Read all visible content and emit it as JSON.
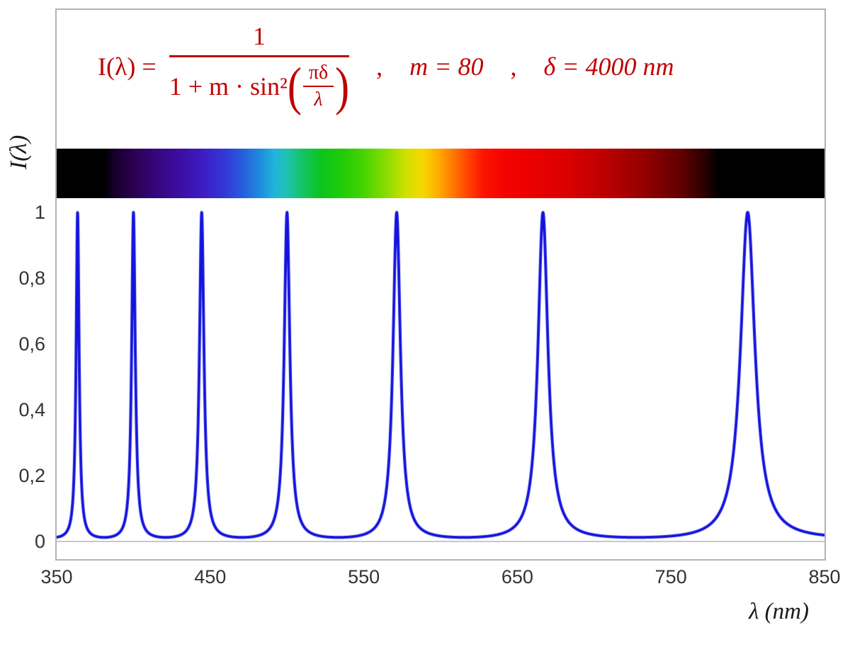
{
  "formula": {
    "lhs": "I(λ) =",
    "numerator": "1",
    "denominator_prefix": "1 + m · sin²",
    "inner_numerator": "πδ",
    "inner_denominator": "λ",
    "separator": ",",
    "param_m": "m = 80",
    "param_delta": "δ = 4000 nm",
    "color": "#c00000"
  },
  "axes": {
    "ylabel": "I(λ)",
    "xlabel": "λ  (nm)"
  },
  "chart_data": {
    "type": "line",
    "title": "Airy transmission function I(λ) = 1 / (1 + m·sin²(πδ/λ)) with m = 80, δ = 4000 nm",
    "function": {
      "m": 80,
      "delta_nm": 4000
    },
    "x_range_nm": [
      350,
      850
    ],
    "y_range": [
      0,
      1
    ],
    "x_ticks": [
      {
        "v": 350,
        "label": "350"
      },
      {
        "v": 450,
        "label": "450"
      },
      {
        "v": 550,
        "label": "550"
      },
      {
        "v": 650,
        "label": "650"
      },
      {
        "v": 750,
        "label": "750"
      },
      {
        "v": 850,
        "label": "850"
      }
    ],
    "y_ticks": [
      {
        "v": 1,
        "label": "1"
      },
      {
        "v": 0.8,
        "label": "0,8"
      },
      {
        "v": 0.6,
        "label": "0,6"
      },
      {
        "v": 0.4,
        "label": "0,4"
      },
      {
        "v": 0.2,
        "label": "0,2"
      },
      {
        "v": 0,
        "label": "0"
      }
    ],
    "peak_wavelengths_nm": [
      363.6,
      400,
      444.4,
      500,
      571.4,
      666.7,
      800
    ],
    "peak_value": 1,
    "baseline_value": 0.0123,
    "line_color": "#1414dd",
    "grid": "none",
    "legend": "none"
  },
  "spectrum_bar": {
    "range_nm": [
      350,
      850
    ],
    "visible_range_nm": [
      381,
      781
    ],
    "stops": [
      {
        "nm": 350,
        "color": "#000000"
      },
      {
        "nm": 381,
        "color": "#000000"
      },
      {
        "nm": 388,
        "color": "#16002a"
      },
      {
        "nm": 400,
        "color": "#2a0050"
      },
      {
        "nm": 415,
        "color": "#36067e"
      },
      {
        "nm": 430,
        "color": "#3c0ea0"
      },
      {
        "nm": 445,
        "color": "#3d1cc3"
      },
      {
        "nm": 460,
        "color": "#3338d8"
      },
      {
        "nm": 472,
        "color": "#2661dc"
      },
      {
        "nm": 483,
        "color": "#1e8ede"
      },
      {
        "nm": 492,
        "color": "#22b4dc"
      },
      {
        "nm": 500,
        "color": "#1fc2b0"
      },
      {
        "nm": 510,
        "color": "#14c464"
      },
      {
        "nm": 522,
        "color": "#0cc41e"
      },
      {
        "nm": 535,
        "color": "#1ecb0a"
      },
      {
        "nm": 550,
        "color": "#46d400"
      },
      {
        "nm": 565,
        "color": "#8cdc00"
      },
      {
        "nm": 578,
        "color": "#d2e000"
      },
      {
        "nm": 588,
        "color": "#f5d800"
      },
      {
        "nm": 598,
        "color": "#ffae00"
      },
      {
        "nm": 608,
        "color": "#ff7a00"
      },
      {
        "nm": 618,
        "color": "#ff4200"
      },
      {
        "nm": 628,
        "color": "#fc1400"
      },
      {
        "nm": 640,
        "color": "#f50400"
      },
      {
        "nm": 660,
        "color": "#ea0000"
      },
      {
        "nm": 685,
        "color": "#d80000"
      },
      {
        "nm": 710,
        "color": "#b80000"
      },
      {
        "nm": 735,
        "color": "#8e0000"
      },
      {
        "nm": 758,
        "color": "#5c0000"
      },
      {
        "nm": 772,
        "color": "#2a0000"
      },
      {
        "nm": 781,
        "color": "#000000"
      },
      {
        "nm": 850,
        "color": "#000000"
      }
    ]
  },
  "colors": {
    "formula_red": "#c00000",
    "curve_blue": "#1414dd",
    "frame_gray": "#b3b3b3",
    "axis_gray": "#c9c9c9",
    "tick_text": "#333333"
  }
}
